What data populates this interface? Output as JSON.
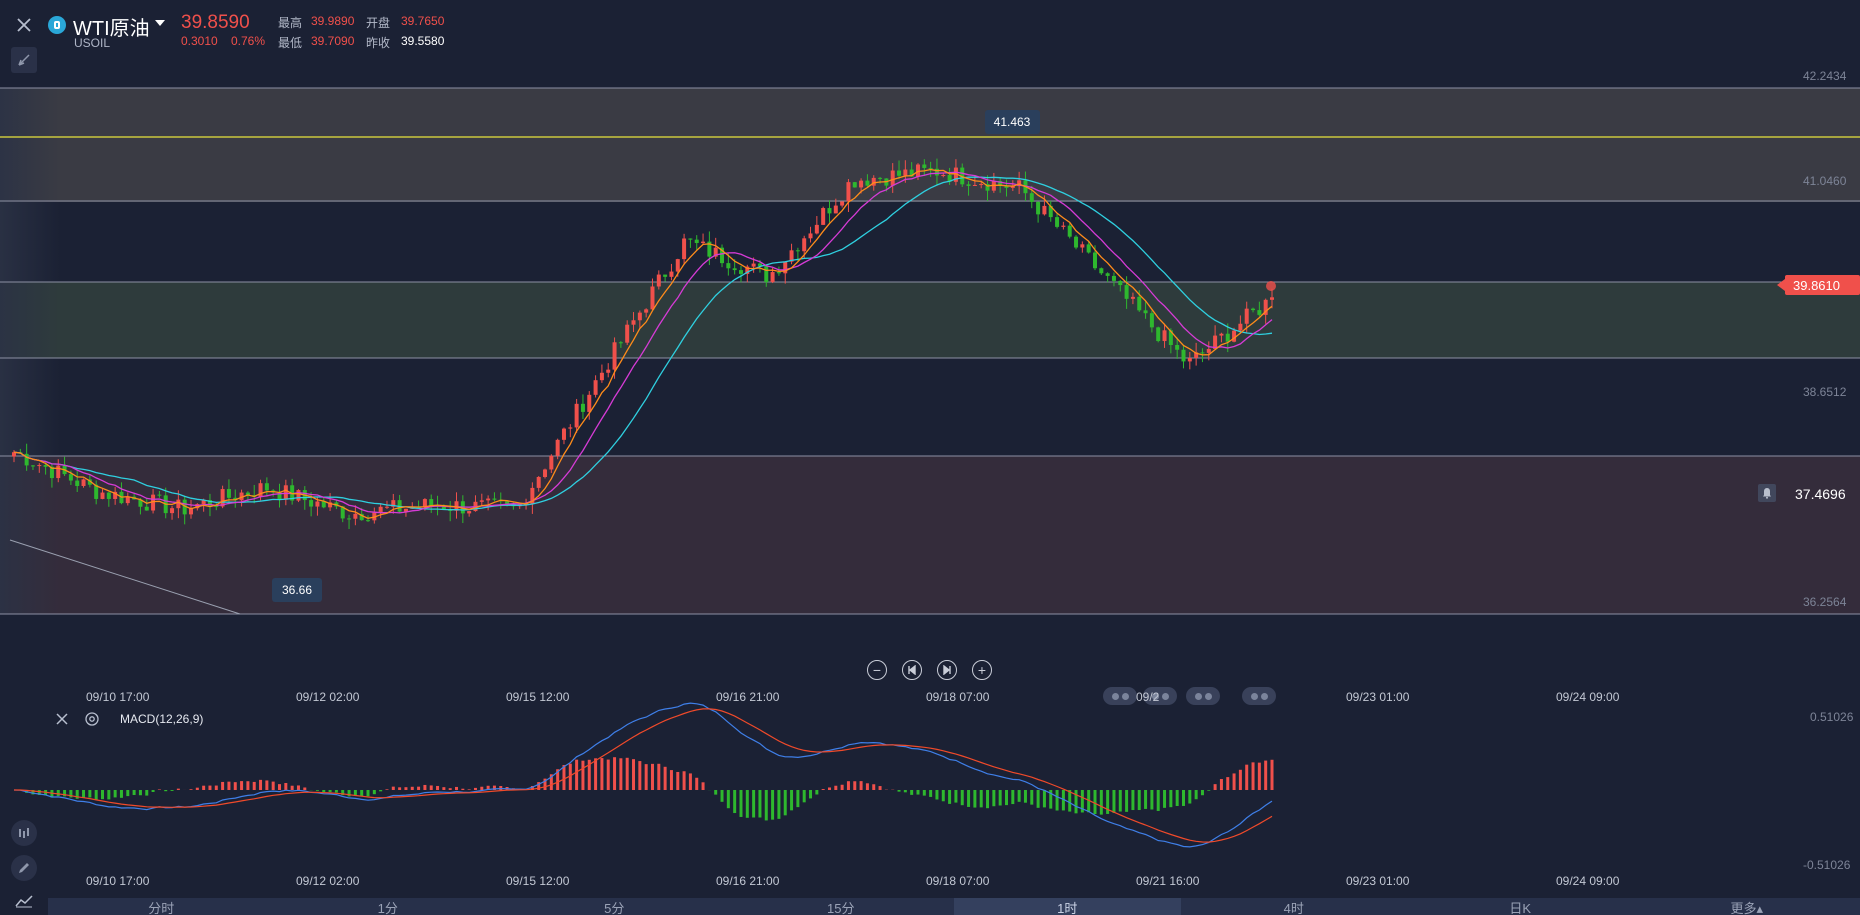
{
  "header": {
    "symbol": "WTI原油",
    "code": "USOIL",
    "price": "39.8590",
    "change": "0.3010",
    "change_pct": "0.76%",
    "high_label": "最高",
    "high": "39.9890",
    "open_label": "开盘",
    "open": "39.7650",
    "low_label": "最低",
    "low": "39.7090",
    "prev_close_label": "昨收",
    "prev_close": "39.5580"
  },
  "price_axis": {
    "p1": "42.2434",
    "p2": "41.0460",
    "current": "39.8610",
    "p3": "38.6512",
    "alert": "37.4696",
    "p4": "36.2564"
  },
  "callouts": {
    "high": "41.463",
    "low": "36.66"
  },
  "time_axis": [
    "09/10 17:00",
    "09/12 02:00",
    "09/15 12:00",
    "09/16 21:00",
    "09/18 07:00",
    "09/21 16:00",
    "09/23 01:00",
    "09/24 09:00"
  ],
  "time_axis_top_overlay": "09/2",
  "macd": {
    "label": "MACD(12,26,9)",
    "axis_top": "0.51026",
    "axis_bottom": "-0.51026"
  },
  "tabs": [
    "分时",
    "1分",
    "5分",
    "15分",
    "1时",
    "4时",
    "日K",
    "更多▴"
  ],
  "active_tab": "1时",
  "colors": {
    "up": "#f0504b",
    "down": "#2eb82e",
    "ma1": "#ff8c1a",
    "ma2": "#d63bd6",
    "ma3": "#2fd0e0",
    "dif": "#3f7fe8",
    "dea": "#f04a2a",
    "background": "#1b2134"
  },
  "icons": [
    "close-icon",
    "draw-tool-icon",
    "minus-icon",
    "prev-icon",
    "next-icon",
    "plus-icon",
    "bell-icon",
    "settings-icon",
    "indicator-icon",
    "pen-icon",
    "line-chart-icon"
  ],
  "chart_data": {
    "type": "candlestick",
    "instrument": "WTI原油",
    "timeframe": "1时",
    "ylim": [
      36.2564,
      42.2434
    ],
    "x": [
      "09/10 17:00",
      "09/12 02:00",
      "09/15 12:00",
      "09/16 21:00",
      "09/18 07:00",
      "09/21 16:00"
    ],
    "close_path": [
      38.1,
      37.65,
      37.45,
      37.7,
      37.4,
      37.5,
      37.45,
      39.0,
      40.5,
      40.1,
      41.2,
      41.3,
      41.1,
      40.1,
      39.1,
      39.85
    ],
    "high": 41.463,
    "low": 36.66,
    "last": 39.861
  }
}
